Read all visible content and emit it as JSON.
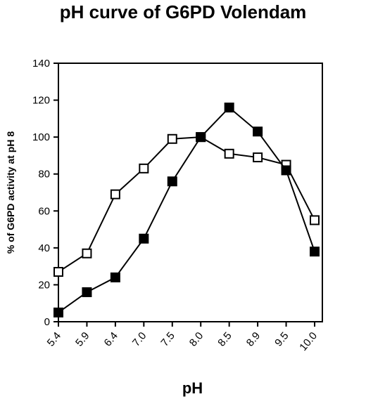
{
  "chart_data": {
    "type": "line",
    "title": "pH curve of G6PD Volendam",
    "xlabel": "pH",
    "ylabel": "% of G6PD activity at pH 8",
    "categories": [
      "5.4",
      "5.9",
      "6.4",
      "7.0",
      "7.5",
      "8.0",
      "8.5",
      "8.9",
      "9.5",
      "10.0"
    ],
    "ylim": [
      0,
      140
    ],
    "yticks": [
      0,
      20,
      40,
      60,
      80,
      100,
      120,
      140
    ],
    "grid": false,
    "legend": "none",
    "series": [
      {
        "marker": "open-square",
        "color": "#000000",
        "values": [
          27,
          37,
          69,
          83,
          99,
          100,
          91,
          89,
          85,
          55
        ]
      },
      {
        "marker": "filled-square",
        "color": "#000000",
        "values": [
          5,
          16,
          24,
          45,
          76,
          100,
          116,
          103,
          82,
          38
        ]
      }
    ]
  }
}
